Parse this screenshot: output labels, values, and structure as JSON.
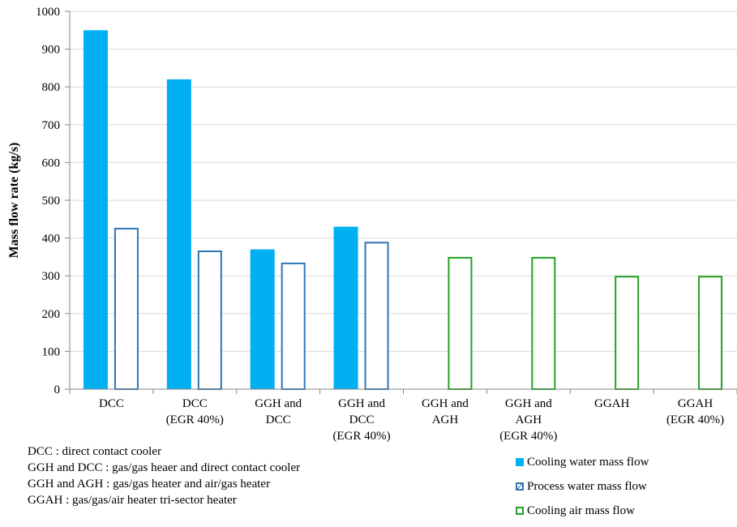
{
  "chart_data": {
    "type": "bar",
    "title": "",
    "xlabel": "",
    "ylabel": "Mass flow rate (kg/s)",
    "ylim": [
      0,
      1000
    ],
    "yticks": [
      0,
      100,
      200,
      300,
      400,
      500,
      600,
      700,
      800,
      900,
      1000
    ],
    "grid": true,
    "legend_position": "bottom-right",
    "categories": [
      [
        "DCC"
      ],
      [
        "DCC",
        "(EGR 40%)"
      ],
      [
        "GGH and",
        "DCC"
      ],
      [
        "GGH and",
        "DCC",
        "(EGR 40%)"
      ],
      [
        "GGH and",
        "AGH"
      ],
      [
        "GGH and",
        "AGH",
        "(EGR 40%)"
      ],
      [
        "GGAH"
      ],
      [
        "GGAH",
        "(EGR 40%)"
      ]
    ],
    "series": [
      {
        "name": "Cooling water mass flow",
        "color": "#00B0F0",
        "style": "filled",
        "values": [
          950,
          820,
          370,
          430,
          null,
          null,
          null,
          null
        ]
      },
      {
        "name": "Process water mass flow",
        "color": "#2E75B6",
        "style": "outline",
        "values": [
          427,
          367,
          335,
          390,
          null,
          null,
          null,
          null
        ]
      },
      {
        "name": "Cooling air mass flow",
        "color": "#22A022",
        "style": "outline",
        "values": [
          null,
          null,
          null,
          null,
          350,
          350,
          300,
          300
        ]
      }
    ]
  },
  "notes": [
    "DCC : direct contact cooler",
    "GGH and DCC : gas/gas heaer and direct contact cooler",
    "GGH and AGH : gas/gas heater and air/gas heater",
    "GGAH : gas/gas/air heater tri-sector heater"
  ]
}
